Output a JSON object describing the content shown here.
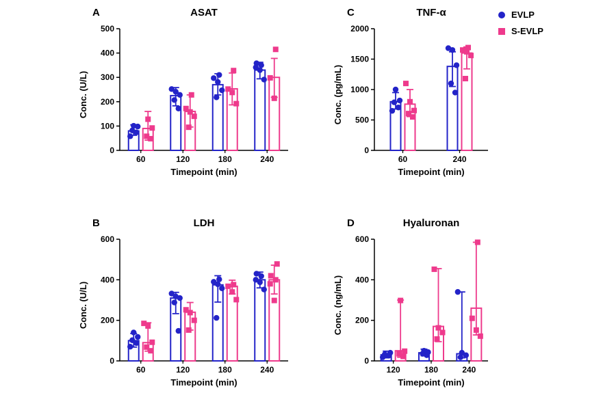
{
  "legend": {
    "items": [
      {
        "label": "EVLP",
        "marker": "circle",
        "color": "#2323c8"
      },
      {
        "label": "S-EVLP",
        "marker": "square",
        "color": "#ee3a8c"
      }
    ]
  },
  "colors": {
    "evlp_blue": "#2323c8",
    "sevlp_pink": "#ee3a8c",
    "axis": "#000000",
    "background": "#ffffff"
  },
  "chart_data": [
    {
      "panel_label": "A",
      "title": "ASAT",
      "type": "bar",
      "xlabel": "Timepoint (min)",
      "ylabel": "Conc. (U/L)",
      "ylim": [
        0,
        500
      ],
      "yticks": [
        0,
        100,
        200,
        300,
        400,
        500
      ],
      "categories": [
        "60",
        "120",
        "180",
        "240"
      ],
      "series": [
        {
          "name": "EVLP",
          "color": "#2323c8",
          "marker": "circle",
          "values": [
            80,
            225,
            270,
            330
          ],
          "errors": [
            [
              62,
              105
            ],
            [
              183,
              258
            ],
            [
              228,
              315
            ],
            [
              294,
              362
            ]
          ],
          "points": [
            [
              58,
              74,
              82,
              98,
              101
            ],
            [
              172,
              207,
              228,
              241,
              252
            ],
            [
              218,
              247,
              281,
              297,
              310
            ],
            [
              291,
              330,
              341,
              350,
              358
            ]
          ]
        },
        {
          "name": "S-EVLP",
          "color": "#ee3a8c",
          "marker": "square",
          "values": [
            90,
            160,
            253,
            300
          ],
          "errors": [
            [
              42,
              160
            ],
            [
              96,
              228
            ],
            [
              187,
              318
            ],
            [
              218,
              378
            ]
          ],
          "points": [
            [
              48,
              58,
              92,
              128
            ],
            [
              95,
              140,
              158,
              172,
              228
            ],
            [
              192,
              238,
              252,
              328
            ],
            [
              214,
              298,
              415
            ]
          ]
        }
      ]
    },
    {
      "panel_label": "B",
      "title": "LDH",
      "type": "bar",
      "xlabel": "Timepoint (min)",
      "ylabel": "Conc. (U/L)",
      "ylim": [
        0,
        600
      ],
      "yticks": [
        0,
        200,
        400,
        600
      ],
      "categories": [
        "60",
        "120",
        "180",
        "240"
      ],
      "series": [
        {
          "name": "EVLP",
          "color": "#2323c8",
          "marker": "circle",
          "values": [
            100,
            310,
            375,
            400
          ],
          "errors": [
            [
              68,
              135
            ],
            [
              233,
              338
            ],
            [
              290,
              420
            ],
            [
              360,
              438
            ]
          ],
          "points": [
            [
              70,
              88,
              102,
              118,
              140
            ],
            [
              148,
              288,
              310,
              318,
              332
            ],
            [
              212,
              358,
              378,
              390,
              402
            ],
            [
              352,
              388,
              400,
              418,
              430
            ]
          ]
        },
        {
          "name": "S-EVLP",
          "color": "#ee3a8c",
          "marker": "square",
          "values": [
            90,
            240,
            368,
            400
          ],
          "errors": [
            [
              48,
              188
            ],
            [
              152,
              288
            ],
            [
              330,
              398
            ],
            [
              330,
              472
            ]
          ],
          "points": [
            [
              50,
              68,
              92,
              172,
              185
            ],
            [
              152,
              200,
              238,
              252
            ],
            [
              302,
              340,
              368,
              376
            ],
            [
              298,
              380,
              400,
              420,
              478
            ]
          ]
        }
      ]
    },
    {
      "panel_label": "C",
      "title": "TNF-α",
      "type": "bar",
      "xlabel": "Timepoint (min)",
      "ylabel": "Conc. (pg/mL)",
      "ylim": [
        0,
        2000
      ],
      "yticks": [
        0,
        500,
        1000,
        1500,
        2000
      ],
      "categories": [
        "60",
        "240"
      ],
      "series": [
        {
          "name": "EVLP",
          "color": "#2323c8",
          "marker": "circle",
          "values": [
            800,
            1380
          ],
          "errors": [
            [
              680,
              950
            ],
            [
              1050,
              1620
            ]
          ],
          "points": [
            [
              650,
              705,
              790,
              820,
              1000
            ],
            [
              950,
              1100,
              1400,
              1650,
              1680
            ]
          ]
        },
        {
          "name": "S-EVLP",
          "color": "#ee3a8c",
          "marker": "square",
          "values": [
            760,
            1600
          ],
          "errors": [
            [
              555,
              1000
            ],
            [
              1340,
              1700
            ]
          ],
          "points": [
            [
              550,
              605,
              655,
              800,
              1100
            ],
            [
              1180,
              1560,
              1620,
              1650,
              1690
            ]
          ]
        }
      ]
    },
    {
      "panel_label": "D",
      "title": "Hyaluronan",
      "type": "bar",
      "xlabel": "Timepoint (min)",
      "ylabel": "Conc. (ng/mL)",
      "ylim": [
        0,
        600
      ],
      "yticks": [
        0,
        200,
        400,
        600
      ],
      "categories": [
        "120",
        "180",
        "240"
      ],
      "series": [
        {
          "name": "EVLP",
          "color": "#2323c8",
          "marker": "circle",
          "values": [
            30,
            40,
            35
          ],
          "errors": [
            [
              15,
              48
            ],
            [
              25,
              58
            ],
            [
              15,
              340
            ]
          ],
          "points": [
            [
              18,
              26,
              32,
              40
            ],
            [
              28,
              35,
              43,
              50
            ],
            [
              18,
              28,
              40,
              340
            ]
          ]
        },
        {
          "name": "S-EVLP",
          "color": "#ee3a8c",
          "marker": "square",
          "values": [
            50,
            170,
            260
          ],
          "errors": [
            [
              18,
              300
            ],
            [
              95,
              455
            ],
            [
              128,
              585
            ]
          ],
          "points": [
            [
              22,
              35,
              48,
              298
            ],
            [
              108,
              140,
              163,
              452
            ],
            [
              122,
              152,
              210,
              585
            ]
          ]
        }
      ]
    }
  ]
}
